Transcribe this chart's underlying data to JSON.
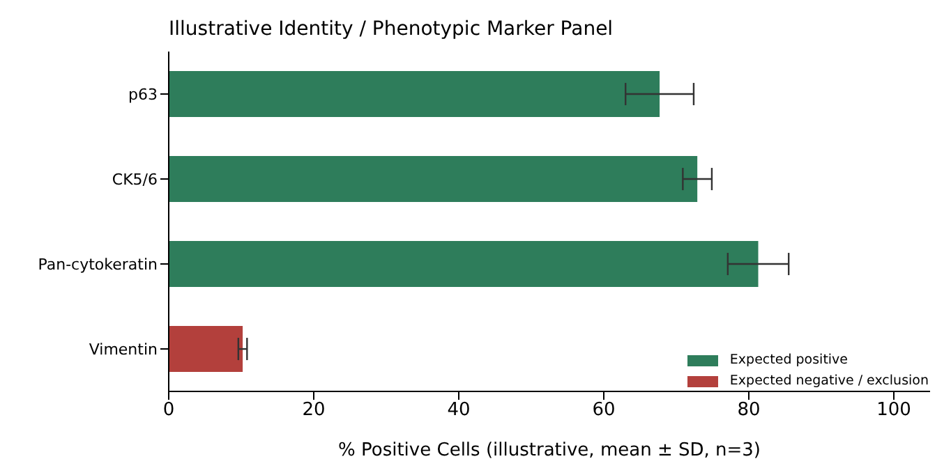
{
  "chart_data": {
    "type": "bar",
    "orientation": "horizontal",
    "stacked": true,
    "title": "Illustrative Identity / Phenotypic Marker Panel",
    "xlabel": "% Positive Cells (illustrative, mean ± SD, n=3)",
    "categories": [
      "p63",
      "CK5/6",
      "Pan-cytokeratin",
      "Vimentin"
    ],
    "series": [
      {
        "name": "Expected positive",
        "color": "#2e7d5b",
        "values": [
          67.7,
          72.9,
          81.3,
          null
        ],
        "errors": [
          4.7,
          2.0,
          4.2,
          null
        ]
      },
      {
        "name": "Expected negative / exclusion",
        "color": "#b3403c",
        "values": [
          null,
          null,
          null,
          10.2
        ],
        "errors": [
          null,
          null,
          null,
          0.6
        ]
      }
    ],
    "xlim": [
      0,
      105
    ],
    "xticks": [
      0,
      20,
      40,
      60,
      80,
      100
    ],
    "legend": "bottom right"
  }
}
